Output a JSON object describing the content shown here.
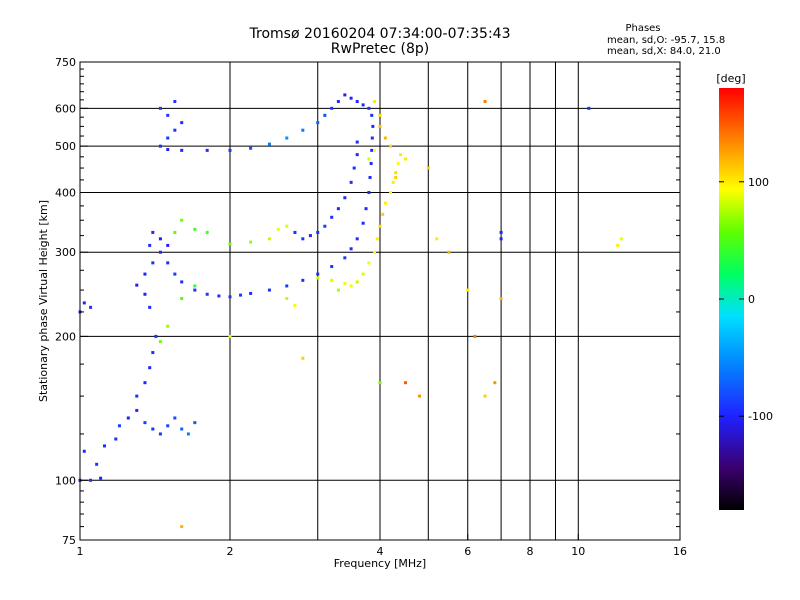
{
  "header": {
    "title_line1": "Tromsø 20160204 07:34:00-07:35:43",
    "title_line2": "RwPretec (8p)"
  },
  "stats": {
    "heading": "Phases",
    "line_o": "mean, sd,O: -95.7, 15.8",
    "line_x": "mean, sd,X:  84.0, 21.0"
  },
  "colorbar": {
    "label": "[deg]",
    "ticks": [
      {
        "value": 100,
        "label": "100"
      },
      {
        "value": 0,
        "label": "0"
      },
      {
        "value": -100,
        "label": "-100"
      }
    ],
    "range": [
      -180,
      180
    ]
  },
  "chart_data": {
    "type": "scatter",
    "xlabel": "Frequency [MHz]",
    "ylabel": "Stationary phase Virtual Height [km]",
    "xscale": "log",
    "yscale": "log",
    "xlim": [
      1,
      16
    ],
    "ylim": [
      75,
      750
    ],
    "grid": true,
    "x_ticks": [
      {
        "value": 1,
        "label": "1"
      },
      {
        "value": 2,
        "label": "2"
      },
      {
        "value": 4,
        "label": "4"
      },
      {
        "value": 6,
        "label": "6"
      },
      {
        "value": 8,
        "label": "8"
      },
      {
        "value": 10,
        "label": "10"
      },
      {
        "value": 16,
        "label": "16"
      }
    ],
    "x_minor_grid": [
      3,
      5,
      7,
      9
    ],
    "y_ticks": [
      {
        "value": 75,
        "label": "75"
      },
      {
        "value": 100,
        "label": "100"
      },
      {
        "value": 200,
        "label": "200"
      },
      {
        "value": 300,
        "label": "300"
      },
      {
        "value": 400,
        "label": "400"
      },
      {
        "value": 500,
        "label": "500"
      },
      {
        "value": 600,
        "label": "600"
      },
      {
        "value": 750,
        "label": "750"
      }
    ],
    "y_minor_ticks": [
      125,
      150,
      175,
      225,
      250,
      275,
      325,
      350,
      375,
      425,
      450,
      475,
      525,
      550,
      575,
      625,
      650,
      675,
      700,
      725,
      80,
      85,
      90,
      95
    ],
    "series": [
      {
        "mode": "O",
        "points": [
          [
            1.0,
            100,
            -95
          ],
          [
            1.05,
            100,
            -92
          ],
          [
            1.1,
            101,
            -100
          ],
          [
            1.08,
            108,
            -90
          ],
          [
            1.02,
            115,
            -98
          ],
          [
            1.12,
            118,
            -96
          ],
          [
            1.18,
            122,
            -94
          ],
          [
            1.2,
            130,
            -90
          ],
          [
            1.25,
            135,
            -100
          ],
          [
            1.3,
            140,
            -95
          ],
          [
            1.35,
            132,
            -88
          ],
          [
            1.4,
            128,
            -92
          ],
          [
            1.45,
            125,
            -90
          ],
          [
            1.5,
            130,
            -85
          ],
          [
            1.55,
            135,
            -80
          ],
          [
            1.6,
            128,
            -70
          ],
          [
            1.65,
            125,
            -60
          ],
          [
            1.7,
            132,
            -75
          ],
          [
            1.3,
            150,
            -95
          ],
          [
            1.35,
            160,
            -98
          ],
          [
            1.38,
            172,
            -100
          ],
          [
            1.4,
            185,
            -96
          ],
          [
            1.42,
            200,
            -92
          ],
          [
            1.38,
            230,
            -95
          ],
          [
            1.35,
            245,
            -100
          ],
          [
            1.3,
            256,
            -105
          ],
          [
            1.35,
            270,
            -100
          ],
          [
            1.4,
            285,
            -95
          ],
          [
            1.45,
            300,
            -98
          ],
          [
            1.5,
            310,
            -100
          ],
          [
            1.45,
            320,
            -102
          ],
          [
            1.4,
            330,
            -96
          ],
          [
            1.38,
            310,
            -95
          ],
          [
            1.5,
            285,
            -94
          ],
          [
            1.55,
            270,
            -90
          ],
          [
            1.6,
            260,
            -95
          ],
          [
            1.7,
            250,
            -92
          ],
          [
            1.8,
            245,
            -90
          ],
          [
            1.9,
            243,
            -95
          ],
          [
            2.0,
            242,
            -92
          ],
          [
            2.1,
            244,
            -90
          ],
          [
            2.2,
            246,
            -94
          ],
          [
            2.4,
            250,
            -92
          ],
          [
            2.6,
            255,
            -90
          ],
          [
            2.8,
            262,
            -93
          ],
          [
            3.0,
            270,
            -95
          ],
          [
            3.2,
            280,
            -92
          ],
          [
            3.4,
            292,
            -90
          ],
          [
            3.5,
            305,
            -95
          ],
          [
            3.6,
            320,
            -96
          ],
          [
            3.7,
            345,
            -98
          ],
          [
            3.75,
            370,
            -100
          ],
          [
            3.8,
            400,
            -97
          ],
          [
            3.82,
            430,
            -95
          ],
          [
            3.84,
            460,
            -96
          ],
          [
            3.85,
            490,
            -95
          ],
          [
            3.86,
            520,
            -94
          ],
          [
            3.87,
            550,
            -96
          ],
          [
            3.85,
            580,
            -95
          ],
          [
            3.8,
            600,
            -97
          ],
          [
            3.7,
            610,
            -96
          ],
          [
            3.6,
            620,
            -98
          ],
          [
            3.5,
            630,
            -100
          ],
          [
            3.4,
            640,
            -102
          ],
          [
            3.3,
            620,
            -95
          ],
          [
            3.2,
            600,
            -90
          ],
          [
            3.1,
            580,
            -80
          ],
          [
            3.0,
            560,
            -70
          ],
          [
            2.8,
            540,
            -60
          ],
          [
            2.6,
            520,
            -50
          ],
          [
            2.4,
            505,
            -60
          ],
          [
            2.2,
            495,
            -80
          ],
          [
            2.0,
            490,
            -90
          ],
          [
            1.8,
            490,
            -95
          ],
          [
            1.6,
            490,
            -98
          ],
          [
            1.5,
            492,
            -100
          ],
          [
            1.45,
            500,
            -96
          ],
          [
            1.5,
            520,
            -90
          ],
          [
            1.55,
            540,
            -92
          ],
          [
            1.6,
            560,
            -95
          ],
          [
            1.5,
            580,
            -90
          ],
          [
            1.45,
            600,
            -92
          ],
          [
            1.55,
            620,
            -90
          ],
          [
            2.7,
            330,
            -95
          ],
          [
            2.8,
            320,
            -92
          ],
          [
            2.9,
            325,
            -98
          ],
          [
            3.0,
            330,
            -95
          ],
          [
            3.1,
            340,
            -90
          ],
          [
            3.2,
            355,
            -95
          ],
          [
            3.3,
            370,
            -98
          ],
          [
            3.4,
            390,
            -96
          ],
          [
            3.5,
            420,
            -94
          ],
          [
            3.55,
            450,
            -92
          ],
          [
            3.6,
            480,
            -95
          ],
          [
            3.6,
            510,
            -96
          ],
          [
            1.0,
            225,
            -95
          ],
          [
            1.05,
            230,
            -92
          ],
          [
            1.02,
            235,
            -98
          ],
          [
            7.0,
            320,
            -100
          ],
          [
            7.0,
            330,
            -98
          ],
          [
            10.5,
            600,
            -95
          ]
        ]
      },
      {
        "mode": "X",
        "points": [
          [
            3.6,
            260,
            80
          ],
          [
            3.7,
            270,
            85
          ],
          [
            3.8,
            285,
            90
          ],
          [
            3.9,
            300,
            95
          ],
          [
            3.95,
            320,
            100
          ],
          [
            4.0,
            340,
            105
          ],
          [
            4.05,
            360,
            110
          ],
          [
            4.1,
            380,
            100
          ],
          [
            4.2,
            400,
            95
          ],
          [
            4.25,
            420,
            100
          ],
          [
            4.3,
            440,
            105
          ],
          [
            4.35,
            460,
            95
          ],
          [
            4.4,
            480,
            100
          ],
          [
            4.2,
            500,
            110
          ],
          [
            4.1,
            520,
            120
          ],
          [
            4.0,
            550,
            115
          ],
          [
            4.0,
            580,
            105
          ],
          [
            3.9,
            620,
            100
          ],
          [
            3.0,
            265,
            80
          ],
          [
            3.2,
            262,
            85
          ],
          [
            3.4,
            258,
            90
          ],
          [
            3.5,
            255,
            90
          ],
          [
            3.3,
            250,
            75
          ],
          [
            2.5,
            335,
            90
          ],
          [
            2.6,
            340,
            85
          ],
          [
            2.4,
            320,
            80
          ],
          [
            2.2,
            315,
            70
          ],
          [
            2.0,
            312,
            60
          ],
          [
            1.8,
            330,
            50
          ],
          [
            1.7,
            335,
            45
          ],
          [
            1.6,
            350,
            60
          ],
          [
            1.55,
            330,
            55
          ],
          [
            1.45,
            195,
            60
          ],
          [
            1.5,
            210,
            70
          ],
          [
            1.6,
            240,
            50
          ],
          [
            1.7,
            255,
            40
          ],
          [
            2.6,
            240,
            80
          ],
          [
            2.7,
            232,
            90
          ],
          [
            3.8,
            470,
            85
          ],
          [
            3.9,
            490,
            95
          ],
          [
            4.3,
            430,
            110
          ],
          [
            4.5,
            470,
            100
          ],
          [
            5.0,
            450,
            110
          ],
          [
            5.2,
            320,
            100
          ],
          [
            5.5,
            300,
            120
          ],
          [
            6.0,
            250,
            100
          ],
          [
            6.2,
            200,
            140
          ],
          [
            6.8,
            160,
            130
          ],
          [
            6.5,
            150,
            110
          ],
          [
            4.5,
            160,
            150
          ],
          [
            4.8,
            150,
            130
          ],
          [
            7.0,
            240,
            120
          ],
          [
            6.5,
            620,
            140
          ],
          [
            2.8,
            180,
            110
          ],
          [
            2.0,
            200,
            90
          ],
          [
            12.0,
            310,
            100
          ],
          [
            12.2,
            320,
            90
          ],
          [
            1.6,
            80,
            120
          ],
          [
            4.0,
            160,
            60
          ]
        ]
      }
    ]
  }
}
